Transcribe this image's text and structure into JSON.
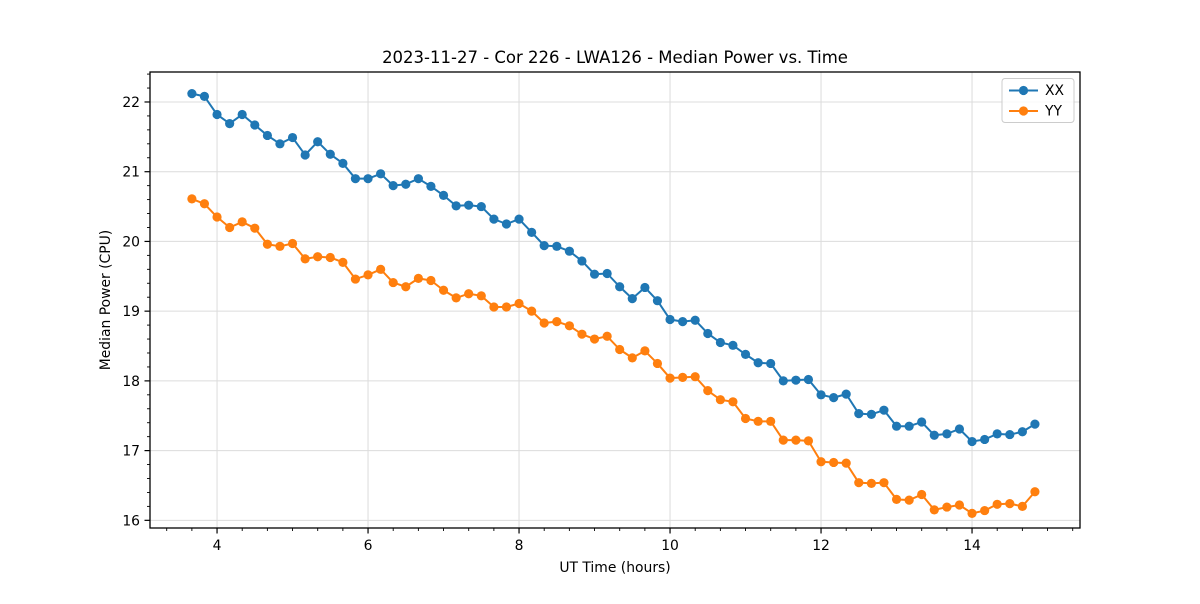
{
  "figure": {
    "background": "#ffffff",
    "plot_background": "#ffffff",
    "spine_color": "#000000",
    "grid_color": "#dcdcdc"
  },
  "chart_data": {
    "type": "line",
    "title": "2023-11-27 - Cor 226 - LWA126 - Median Power vs. Time",
    "xlabel": "UT Time (hours)",
    "ylabel": "Median Power (CPU)",
    "xlim": [
      3.112,
      15.43
    ],
    "ylim": [
      15.89,
      22.43
    ],
    "x_major_ticks": [
      4,
      6,
      8,
      10,
      12,
      14
    ],
    "y_major_ticks": [
      16,
      17,
      18,
      19,
      20,
      21,
      22
    ],
    "x_minor_step": 0.3333333,
    "y_minor_step": 0.2,
    "grid": true,
    "legend": {
      "position": "upper right",
      "entries": [
        "XX",
        "YY"
      ]
    },
    "x": [
      3.667,
      3.833,
      4.0,
      4.167,
      4.333,
      4.5,
      4.667,
      4.833,
      5.0,
      5.167,
      5.333,
      5.5,
      5.667,
      5.833,
      6.0,
      6.167,
      6.333,
      6.5,
      6.667,
      6.833,
      7.0,
      7.167,
      7.333,
      7.5,
      7.667,
      7.833,
      8.0,
      8.167,
      8.333,
      8.5,
      8.667,
      8.833,
      9.0,
      9.167,
      9.333,
      9.5,
      9.667,
      9.833,
      10.0,
      10.167,
      10.333,
      10.5,
      10.667,
      10.833,
      11.0,
      11.167,
      11.333,
      11.5,
      11.667,
      11.833,
      12.0,
      12.167,
      12.333,
      12.5,
      12.667,
      12.833,
      13.0,
      13.167,
      13.333,
      13.5,
      13.667,
      13.833,
      14.0,
      14.167,
      14.333,
      14.5,
      14.667,
      14.833
    ],
    "series": [
      {
        "name": "XX",
        "color": "#1f77b4",
        "values": [
          22.12,
          22.08,
          21.82,
          21.69,
          21.82,
          21.67,
          21.52,
          21.4,
          21.49,
          21.24,
          21.43,
          21.25,
          21.12,
          20.9,
          20.9,
          20.97,
          20.8,
          20.82,
          20.9,
          20.79,
          20.66,
          20.51,
          20.52,
          20.5,
          20.32,
          20.25,
          20.32,
          20.13,
          19.94,
          19.93,
          19.86,
          19.72,
          19.53,
          19.54,
          19.35,
          19.18,
          19.34,
          19.15,
          18.88,
          18.85,
          18.87,
          18.68,
          18.55,
          18.51,
          18.38,
          18.26,
          18.25,
          18.0,
          18.01,
          18.02,
          17.8,
          17.76,
          17.81,
          17.53,
          17.52,
          17.58,
          17.35,
          17.35,
          17.41,
          17.22,
          17.24,
          17.31,
          17.13,
          17.16,
          17.24,
          17.23,
          17.27,
          17.38
        ]
      },
      {
        "name": "YY",
        "color": "#ff7f0e",
        "values": [
          20.61,
          20.54,
          20.35,
          20.2,
          20.28,
          20.19,
          19.96,
          19.93,
          19.97,
          19.75,
          19.78,
          19.77,
          19.7,
          19.46,
          19.52,
          19.6,
          19.41,
          19.35,
          19.47,
          19.44,
          19.3,
          19.19,
          19.25,
          19.22,
          19.06,
          19.06,
          19.11,
          19.0,
          18.83,
          18.85,
          18.79,
          18.67,
          18.6,
          18.64,
          18.45,
          18.33,
          18.43,
          18.25,
          18.04,
          18.05,
          18.06,
          17.86,
          17.73,
          17.7,
          17.46,
          17.42,
          17.42,
          17.15,
          17.15,
          17.14,
          16.84,
          16.83,
          16.82,
          16.54,
          16.53,
          16.54,
          16.3,
          16.29,
          16.37,
          16.15,
          16.19,
          16.22,
          16.1,
          16.14,
          16.23,
          16.24,
          16.2,
          16.41
        ]
      }
    ]
  }
}
